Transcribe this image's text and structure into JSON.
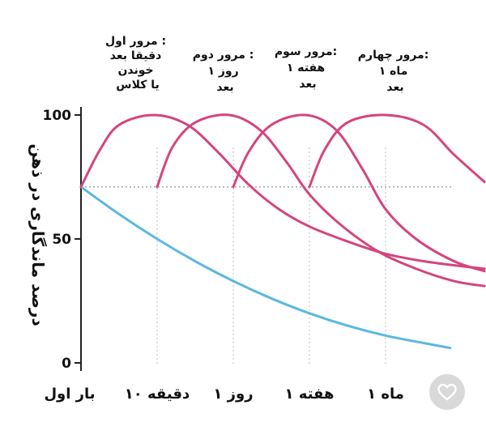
{
  "chart_data": {
    "type": "line",
    "title": "",
    "ylabel": "درصد ماندگاری در ذهن",
    "xlabel": "",
    "ylim": [
      0,
      100
    ],
    "yticks": [
      "100",
      "50",
      "0"
    ],
    "categories": [
      "بار اول",
      "۱۰ دقیقه",
      "۱ روز",
      "۱ هفته",
      "۱ ماه"
    ],
    "reference_level": 71,
    "annotations": [
      {
        "lines": [
          "مرور اول :",
          "دقیقا بعد",
          "خوندن",
          "یا کلاس"
        ]
      },
      {
        "lines": [
          "مرور دوم :",
          "روز ۱",
          "بعد"
        ]
      },
      {
        "lines": [
          "مرور سوم:",
          "هفته ۱",
          "بعد"
        ]
      },
      {
        "lines": [
          "مرور چهارم:",
          "ماه ۱",
          "بعد"
        ]
      }
    ],
    "series": [
      {
        "color": "#5bb8e0",
        "points": [
          [
            0,
            71
          ],
          [
            0.5,
            60
          ],
          [
            1,
            50
          ],
          [
            1.5,
            41
          ],
          [
            2,
            33
          ],
          [
            2.5,
            26
          ],
          [
            3,
            20
          ],
          [
            3.5,
            15
          ],
          [
            4,
            11
          ],
          [
            4.5,
            8
          ],
          [
            4.85,
            6
          ]
        ]
      },
      {
        "color": "#d4457f",
        "points": [
          [
            0,
            71
          ],
          [
            0.25,
            86
          ],
          [
            0.5,
            96
          ],
          [
            0.95,
            100
          ],
          [
            1.4,
            96
          ],
          [
            1.8,
            85
          ],
          [
            2.2,
            72
          ],
          [
            2.6,
            62
          ],
          [
            3,
            55
          ],
          [
            3.5,
            49
          ],
          [
            4,
            44
          ],
          [
            4.5,
            41
          ],
          [
            5,
            39
          ],
          [
            5.3,
            38
          ]
        ]
      },
      {
        "color": "#d4457f",
        "points": [
          [
            1,
            71
          ],
          [
            1.2,
            87
          ],
          [
            1.5,
            97
          ],
          [
            1.95,
            100
          ],
          [
            2.35,
            94
          ],
          [
            2.7,
            81
          ],
          [
            3,
            68
          ],
          [
            3.4,
            56
          ],
          [
            3.9,
            45
          ],
          [
            4.4,
            38
          ],
          [
            4.9,
            33
          ],
          [
            5.3,
            31
          ]
        ]
      },
      {
        "color": "#d4457f",
        "points": [
          [
            2,
            71
          ],
          [
            2.2,
            85
          ],
          [
            2.5,
            96
          ],
          [
            2.95,
            100
          ],
          [
            3.35,
            94
          ],
          [
            3.7,
            78
          ],
          [
            4,
            62
          ],
          [
            4.4,
            50
          ],
          [
            4.9,
            41
          ],
          [
            5.3,
            37
          ]
        ]
      },
      {
        "color": "#d4457f",
        "points": [
          [
            3,
            71
          ],
          [
            3.2,
            86
          ],
          [
            3.5,
            97
          ],
          [
            4,
            100
          ],
          [
            4.5,
            96
          ],
          [
            4.9,
            84
          ],
          [
            5.3,
            73
          ]
        ]
      }
    ]
  }
}
